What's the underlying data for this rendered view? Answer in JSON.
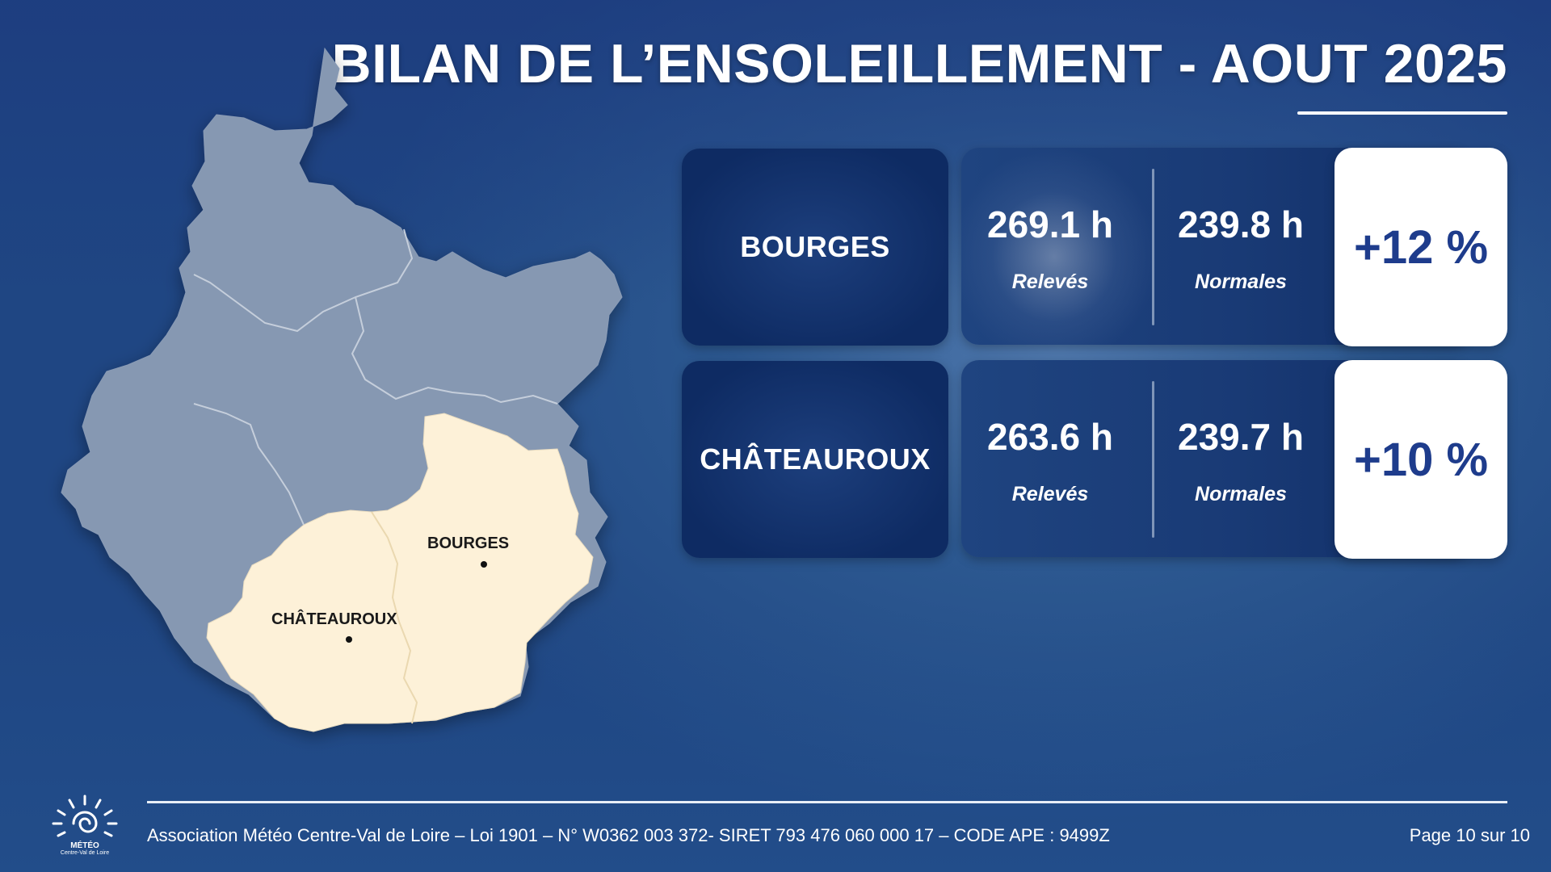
{
  "page": {
    "title": "BILAN DE L’ENSOLEILLEMENT - AOUT 2025"
  },
  "map": {
    "labels": {
      "bourges": "BOURGES",
      "chateauroux": "CHÂTEAUROUX"
    },
    "colors": {
      "region": "#8698b2",
      "highlight": "#fdf1d8",
      "border": "#c5cedb"
    }
  },
  "stations": [
    {
      "city": "BOURGES",
      "releves": "269.1 h",
      "releves_label": "Relevés",
      "normales": "239.8 h",
      "normales_label": "Normales",
      "ecart": "+12 %"
    },
    {
      "city": "CHÂTEAUROUX",
      "releves": "263.6 h",
      "releves_label": "Relevés",
      "normales": "239.7 h",
      "normales_label": "Normales",
      "ecart": "+10 %"
    }
  ],
  "footer": {
    "text": "Association Météo Centre-Val de Loire – Loi 1901 – N° W0362 003 372- SIRET 793 476 060 000 17 – CODE APE : 9499Z",
    "page": "Page 10 sur 10",
    "logo_name": "MÉTÉO",
    "logo_sub": "Centre-Val de Loire"
  },
  "colors": {
    "accent": "#1e3c8c",
    "card_dark": "#0e2b63",
    "background": "#2c5890"
  }
}
